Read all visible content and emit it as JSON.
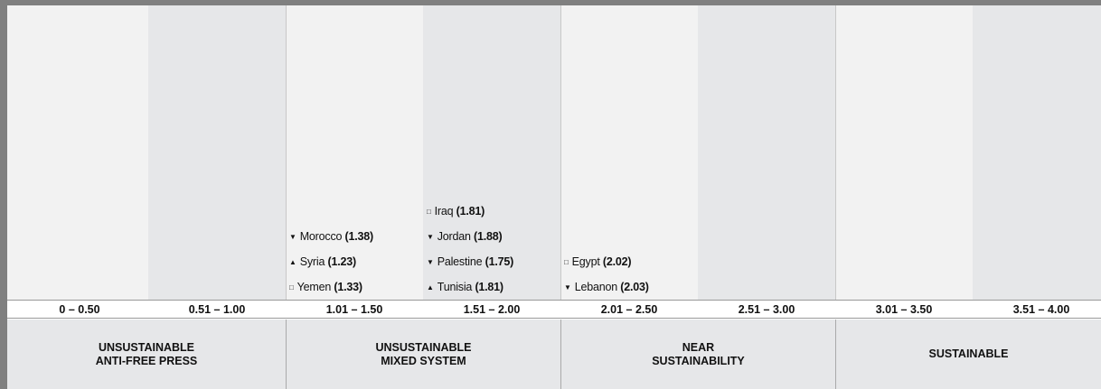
{
  "columns": [
    {
      "range": "0 – 0.50",
      "entries": []
    },
    {
      "range": "0.51 – 1.00",
      "entries": []
    },
    {
      "range": "1.01 – 1.50",
      "entries": [
        {
          "symbol": "▼",
          "country": "Morocco",
          "score": "(1.38)"
        },
        {
          "symbol": "▲",
          "country": "Syria",
          "score": "(1.23)"
        },
        {
          "symbol": "□",
          "country": "Yemen",
          "score": "(1.33)"
        }
      ]
    },
    {
      "range": "1.51 – 2.00",
      "entries": [
        {
          "symbol": "□",
          "country": "Iraq",
          "score": "(1.81)"
        },
        {
          "symbol": "▼",
          "country": "Jordan",
          "score": "(1.88)"
        },
        {
          "symbol": "▼",
          "country": "Palestine",
          "score": "(1.75)"
        },
        {
          "symbol": "▲",
          "country": "Tunisia",
          "score": "(1.81)"
        }
      ]
    },
    {
      "range": "2.01 – 2.50",
      "entries": [
        {
          "symbol": "□",
          "country": "Egypt",
          "score": "(2.02)"
        },
        {
          "symbol": "▼",
          "country": "Lebanon",
          "score": "(2.03)"
        }
      ]
    },
    {
      "range": "2.51 – 3.00",
      "entries": []
    },
    {
      "range": "3.01 – 3.50",
      "entries": []
    },
    {
      "range": "3.51 – 4.00",
      "entries": []
    }
  ],
  "groups": [
    {
      "lines": [
        "UNSUSTAINABLE",
        "ANTI-FREE PRESS"
      ]
    },
    {
      "lines": [
        "UNSUSTAINABLE",
        "MIXED SYSTEM"
      ]
    },
    {
      "lines": [
        "NEAR",
        "SUSTAINABILITY"
      ]
    },
    {
      "lines": [
        "SUSTAINABLE"
      ]
    }
  ]
}
